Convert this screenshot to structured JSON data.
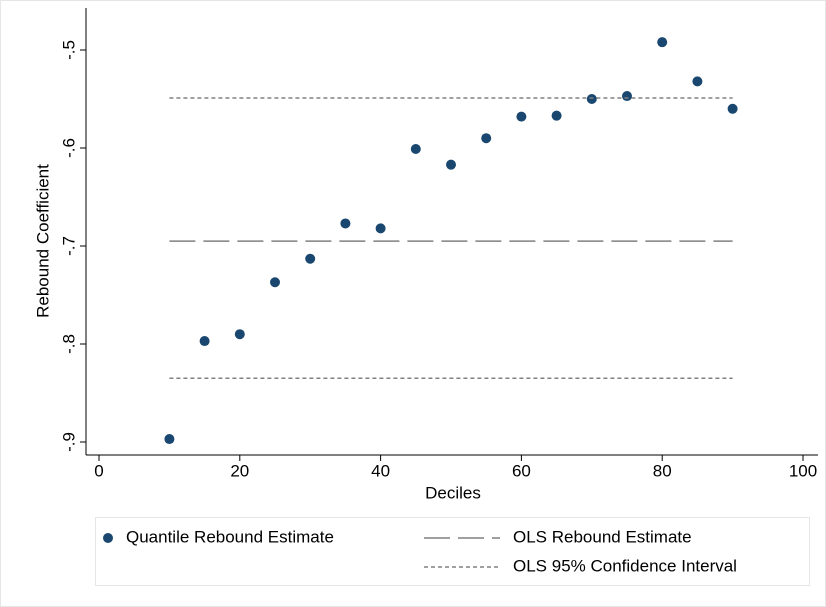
{
  "chart_data": {
    "type": "scatter",
    "xlabel": "Deciles",
    "ylabel": "Rebound Coefficient",
    "xlim": [
      0,
      100
    ],
    "xticks": [
      0,
      20,
      40,
      60,
      80,
      100
    ],
    "ylim": [
      -0.9,
      -0.5
    ],
    "yticks": [
      {
        "value": -0.9,
        "label": "-.9"
      },
      {
        "value": -0.8,
        "label": "-.8"
      },
      {
        "value": -0.7,
        "label": "-.7"
      },
      {
        "value": -0.6,
        "label": "-.6"
      },
      {
        "value": -0.5,
        "label": "-.5"
      }
    ],
    "series": [
      {
        "name": "Quantile Rebound Estimate",
        "color": "#1a476f",
        "style": "marker",
        "x": [
          10,
          15,
          20,
          25,
          30,
          35,
          40,
          45,
          50,
          55,
          60,
          65,
          70,
          75,
          80,
          85,
          90
        ],
        "values": [
          -0.897,
          -0.797,
          -0.79,
          -0.737,
          -0.713,
          -0.677,
          -0.682,
          -0.601,
          -0.617,
          -0.59,
          -0.568,
          -0.567,
          -0.55,
          -0.547,
          -0.492,
          -0.532,
          -0.56
        ]
      },
      {
        "name": "OLS Rebound Estimate",
        "color": "#808080",
        "style": "dash",
        "x": [
          10,
          90
        ],
        "values": [
          -0.695,
          -0.695
        ]
      },
      {
        "name": "OLS 95% Confidence Interval",
        "color": "#808080",
        "style": "dot",
        "x": [
          10,
          90
        ],
        "lower": [
          -0.835,
          -0.835
        ],
        "upper": [
          -0.549,
          -0.549
        ]
      }
    ]
  }
}
